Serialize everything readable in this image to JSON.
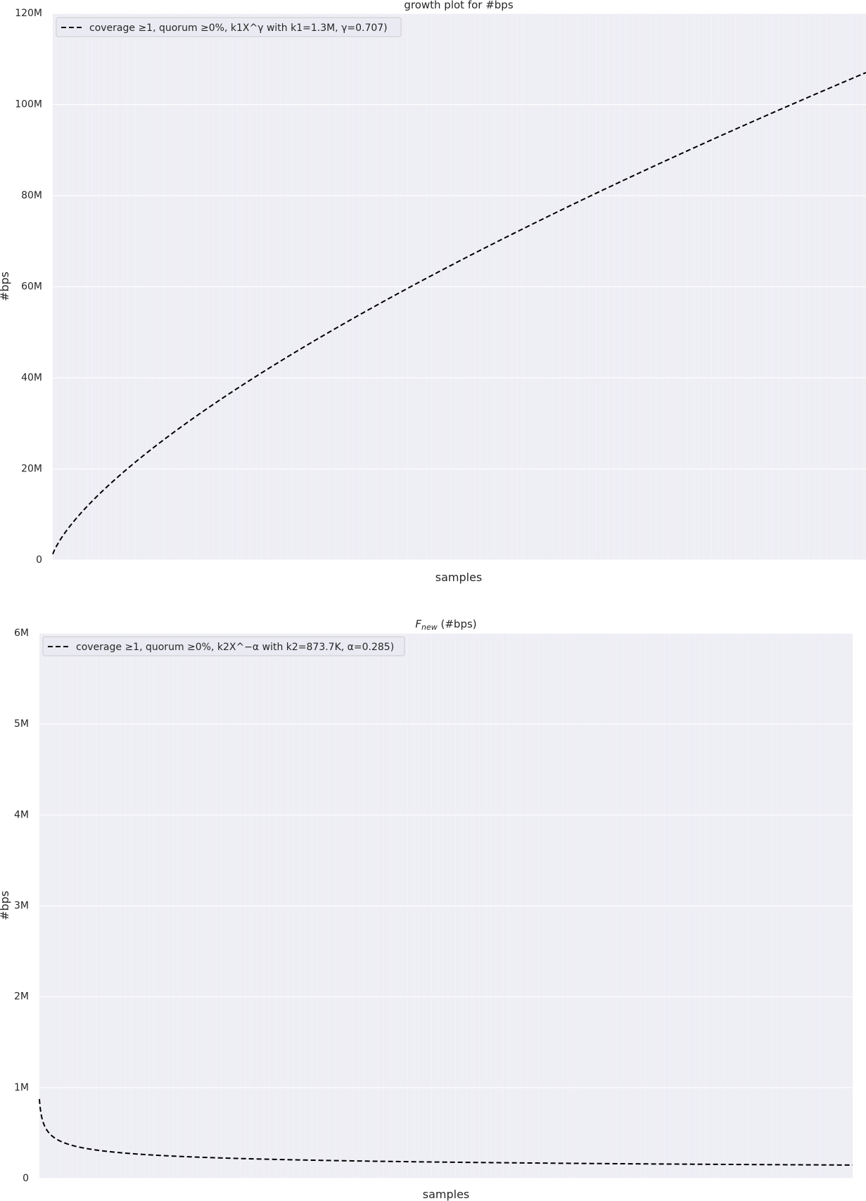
{
  "chart_data": [
    {
      "type": "line",
      "title": "growth plot for #bps",
      "xlabel": "samples",
      "ylabel": "#bps",
      "ylim": [
        0,
        120000000
      ],
      "y_ticks": [
        0,
        20000000,
        40000000,
        60000000,
        80000000,
        100000000,
        120000000
      ],
      "y_tick_labels": [
        "0",
        "20M",
        "40M",
        "60M",
        "80M",
        "100M",
        "120M"
      ],
      "x_tick_labels": [],
      "grid": true,
      "legend_position": "top-left",
      "series": [
        {
          "name": "coverage ≥1, quorum ≥0%, k1X^γ with k1=1.3M, γ=0.707)",
          "style": "dashed",
          "color": "#000000",
          "model": {
            "kind": "power_growth",
            "k": 1300000,
            "exponent": 0.707
          },
          "x_range": [
            1,
            512
          ]
        }
      ]
    },
    {
      "type": "line",
      "title": "Fnew (#bps)",
      "xlabel": "samples",
      "ylabel": "#bps",
      "ylim": [
        0,
        6000000
      ],
      "y_ticks": [
        0,
        1000000,
        2000000,
        3000000,
        4000000,
        5000000,
        6000000
      ],
      "y_tick_labels": [
        "0",
        "1M",
        "2M",
        "3M",
        "4M",
        "5M",
        "6M"
      ],
      "x_tick_labels": [],
      "grid": true,
      "legend_position": "top-left",
      "series": [
        {
          "name": "coverage ≥1, quorum ≥0%, k2X^−α with k2=873.7K, α=0.285)",
          "style": "dashed",
          "color": "#000000",
          "model": {
            "kind": "power_decay",
            "k": 873700,
            "exponent": 0.285
          },
          "x_range": [
            1,
            511
          ]
        }
      ]
    }
  ],
  "colors": {
    "axes_background": "#eaeaf2",
    "grid": "#ffffff",
    "line": "#000000"
  }
}
